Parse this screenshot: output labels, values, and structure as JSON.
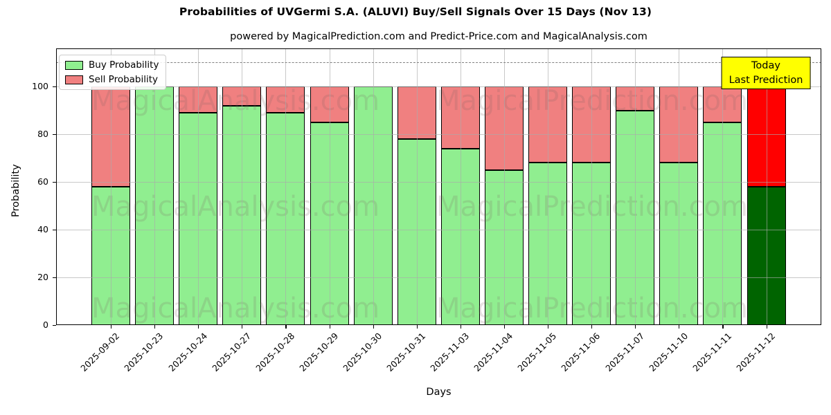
{
  "chart_data": {
    "type": "bar",
    "stacked": true,
    "title": "Probabilities of UVGermi S.A. (ALUVI) Buy/Sell Signals Over 15 Days (Nov 13)",
    "subtitle": "powered by MagicalPrediction.com and Predict-Price.com and MagicalAnalysis.com",
    "xlabel": "Days",
    "ylabel": "Probability",
    "ylim": [
      0,
      116
    ],
    "yticks": [
      0,
      20,
      40,
      60,
      80,
      100
    ],
    "dashed_line_y": 110,
    "grid": true,
    "legend_position": "upper left",
    "categories": [
      "2025-09-02",
      "2025-10-23",
      "2025-10-24",
      "2025-10-27",
      "2025-10-28",
      "2025-10-29",
      "2025-10-30",
      "2025-10-31",
      "2025-11-03",
      "2025-11-04",
      "2025-11-05",
      "2025-11-06",
      "2025-11-07",
      "2025-11-10",
      "2025-11-11",
      "2025-11-12"
    ],
    "series": [
      {
        "name": "Buy Probability",
        "color": "#90EE90",
        "values": [
          58,
          100,
          89,
          92,
          89,
          85,
          100,
          78,
          74,
          65,
          68,
          68,
          90,
          68,
          85,
          58
        ]
      },
      {
        "name": "Sell Probability",
        "color": "#F08080",
        "values": [
          42,
          0,
          11,
          8,
          11,
          15,
          0,
          22,
          26,
          35,
          32,
          32,
          10,
          32,
          15,
          42
        ]
      }
    ],
    "last_bar_colors": {
      "buy": "#006400",
      "sell": "#FF0000"
    },
    "annotation": {
      "lines": [
        "Today",
        "Last Prediction"
      ],
      "bg": "#FFFF00"
    },
    "colors": {
      "edge": "#000000",
      "grid": "#b4b4b4",
      "dashed": "#7f7f7f"
    }
  },
  "watermarks": {
    "left": "MagicalAnalysis.com",
    "right": "MagicalPrediction.com"
  }
}
